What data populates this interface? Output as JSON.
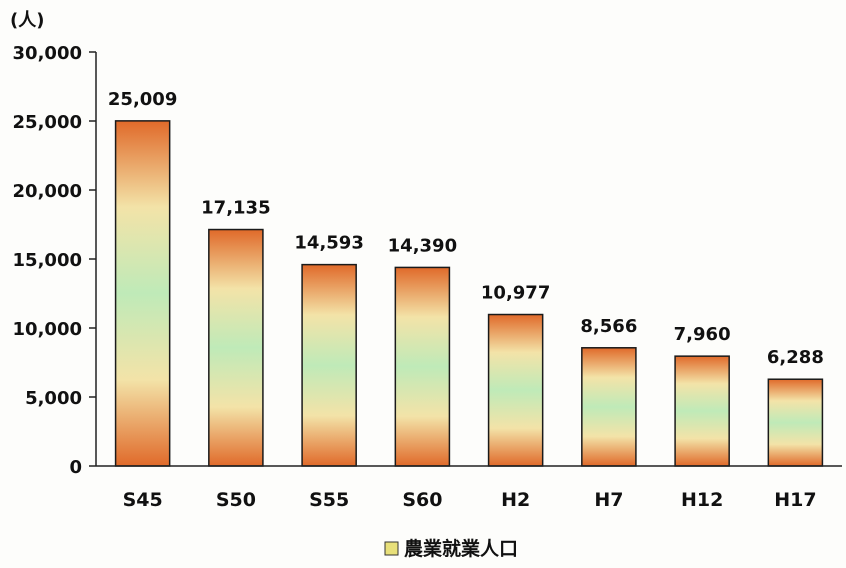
{
  "chart_data": {
    "type": "bar",
    "y_unit": "(人)",
    "categories": [
      "S45",
      "S50",
      "S55",
      "S60",
      "H2",
      "H7",
      "H12",
      "H17"
    ],
    "series": [
      {
        "name": "農業就業人口",
        "values": [
          25009,
          17135,
          14593,
          14390,
          10977,
          8566,
          7960,
          6288
        ]
      }
    ],
    "data_labels": [
      "25,009",
      "17,135",
      "14,593",
      "14,390",
      "10,977",
      "8,566",
      "7,960",
      "6,288"
    ],
    "y_ticks": [
      0,
      5000,
      10000,
      15000,
      20000,
      25000,
      30000
    ],
    "y_tick_labels": [
      "0",
      "5,000",
      "10,000",
      "15,000",
      "20,000",
      "25,000",
      "30,000"
    ],
    "ylim": [
      0,
      30000
    ],
    "grid": false,
    "legend_position": "bottom",
    "colors": {
      "bar_edge": "#e06a2a",
      "bar_mid": "#bfeab8",
      "bar_inner": "#f3e3a8",
      "axis": "#222222",
      "legend_swatch": "#e8e07a"
    }
  }
}
